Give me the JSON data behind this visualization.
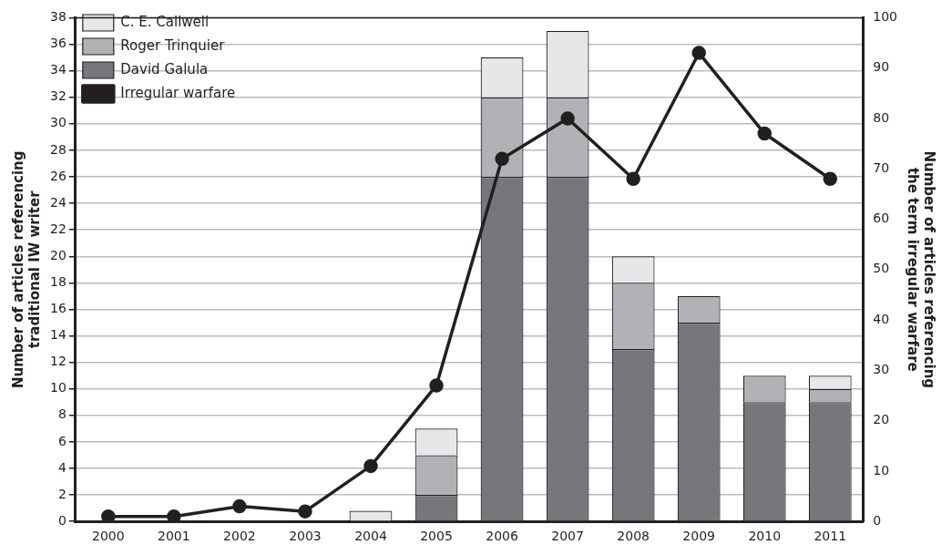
{
  "chart_data": {
    "type": "bar",
    "stacked": true,
    "categories": [
      "2000",
      "2001",
      "2002",
      "2003",
      "2004",
      "2005",
      "2006",
      "2007",
      "2008",
      "2009",
      "2010",
      "2011"
    ],
    "series": [
      {
        "name": "David Galula",
        "color": "#76777b",
        "values": [
          null,
          null,
          null,
          null,
          null,
          2,
          26,
          26,
          13,
          15,
          9,
          9
        ]
      },
      {
        "name": "Roger Trinquier",
        "color": "#b1b2b5",
        "values": [
          null,
          null,
          null,
          null,
          null,
          3,
          6,
          6,
          5,
          2,
          2,
          1
        ]
      },
      {
        "name": "C. E. Callwell",
        "color": "#e6e7e9",
        "values": [
          null,
          null,
          null,
          null,
          0.8,
          2,
          3,
          5,
          2,
          null,
          null,
          1
        ]
      },
      {
        "name": "Irregular warfare",
        "type": "line",
        "axis": "y2",
        "color": "#231f20",
        "values": [
          1,
          1,
          3,
          2,
          11,
          27,
          72,
          80,
          68,
          93,
          77,
          68
        ]
      }
    ],
    "ylabel": "Number of articles referencing traditional IW writer",
    "y2label": "Number of articles referencing the term irregular warfare",
    "ylim": [
      0,
      38
    ],
    "yticks": [
      0,
      2,
      4,
      6,
      8,
      10,
      12,
      14,
      16,
      18,
      20,
      22,
      24,
      26,
      28,
      30,
      32,
      34,
      36,
      38
    ],
    "y2lim": [
      0,
      100
    ],
    "y2ticks": [
      0,
      10,
      20,
      30,
      40,
      50,
      60,
      70,
      80,
      90,
      100
    ],
    "grid": "y",
    "legend": "top left",
    "marker": "circle"
  }
}
